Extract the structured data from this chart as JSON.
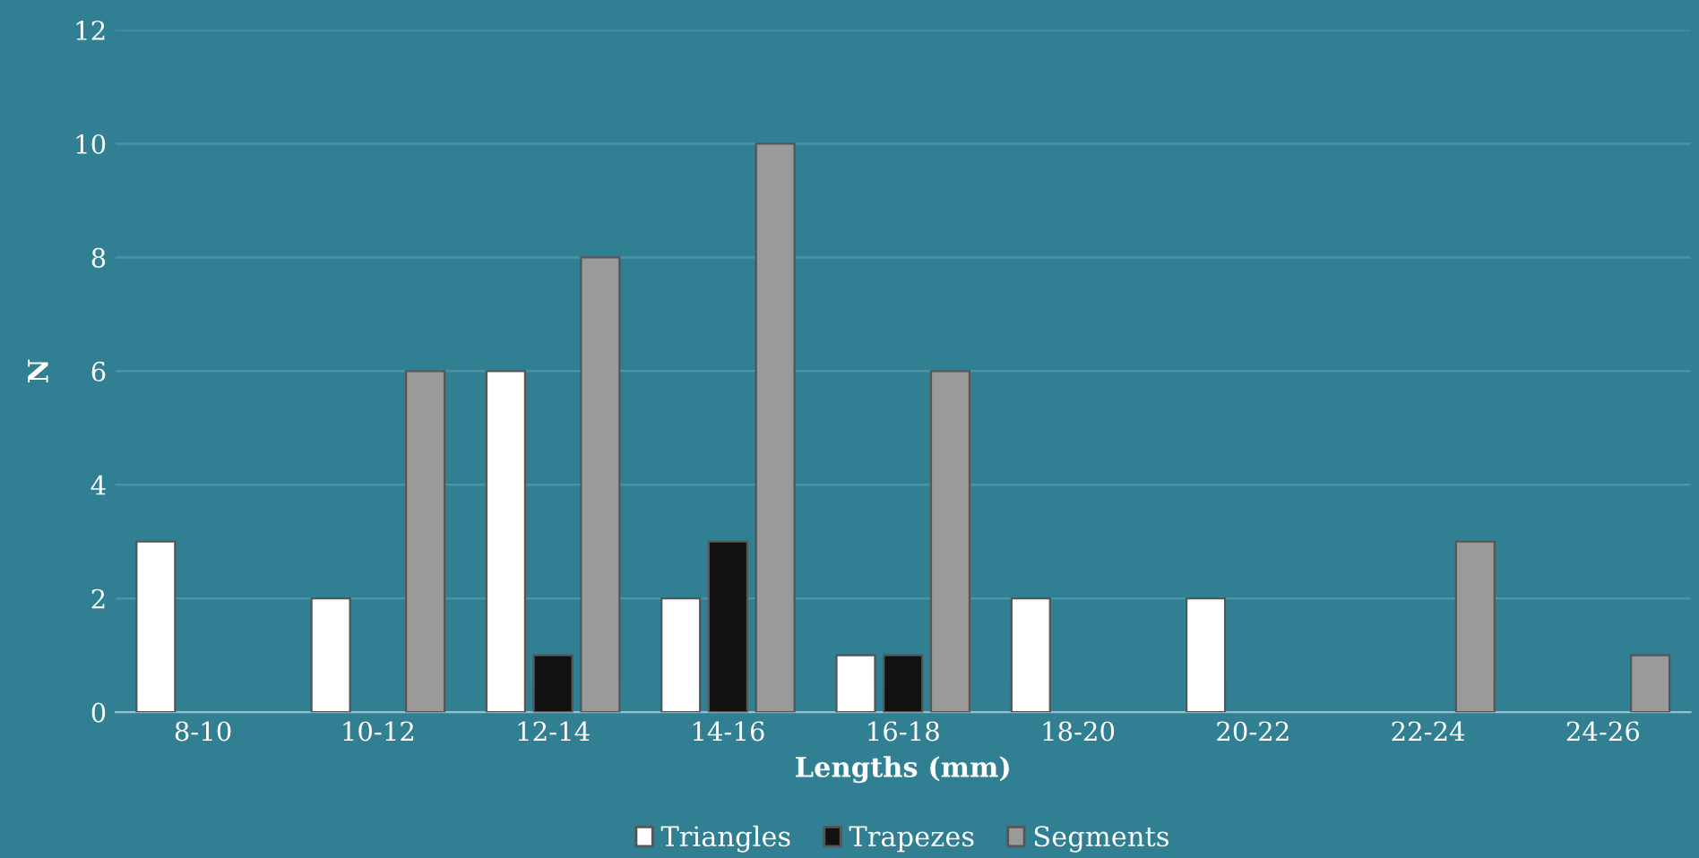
{
  "chart_data": {
    "type": "bar",
    "xlabel": "Lengths (mm)",
    "ylabel": "N",
    "categories": [
      "8-10",
      "10-12",
      "12-14",
      "14-16",
      "16-18",
      "18-20",
      "20-22",
      "22-24",
      "24-26"
    ],
    "series": [
      {
        "name": "Triangles",
        "color": "#ffffff",
        "values": [
          3,
          2,
          6,
          2,
          1,
          2,
          2,
          0,
          0
        ]
      },
      {
        "name": "Trapezes",
        "color": "#111111",
        "values": [
          0,
          0,
          1,
          3,
          1,
          0,
          0,
          0,
          0
        ]
      },
      {
        "name": "Segments",
        "color": "#9a9a9a",
        "values": [
          0,
          6,
          8,
          10,
          6,
          0,
          0,
          3,
          1
        ]
      }
    ],
    "ylim": [
      0,
      12
    ],
    "yticks": [
      0,
      2,
      4,
      6,
      8,
      10,
      12
    ],
    "grid": "y",
    "legend": "bottom"
  }
}
